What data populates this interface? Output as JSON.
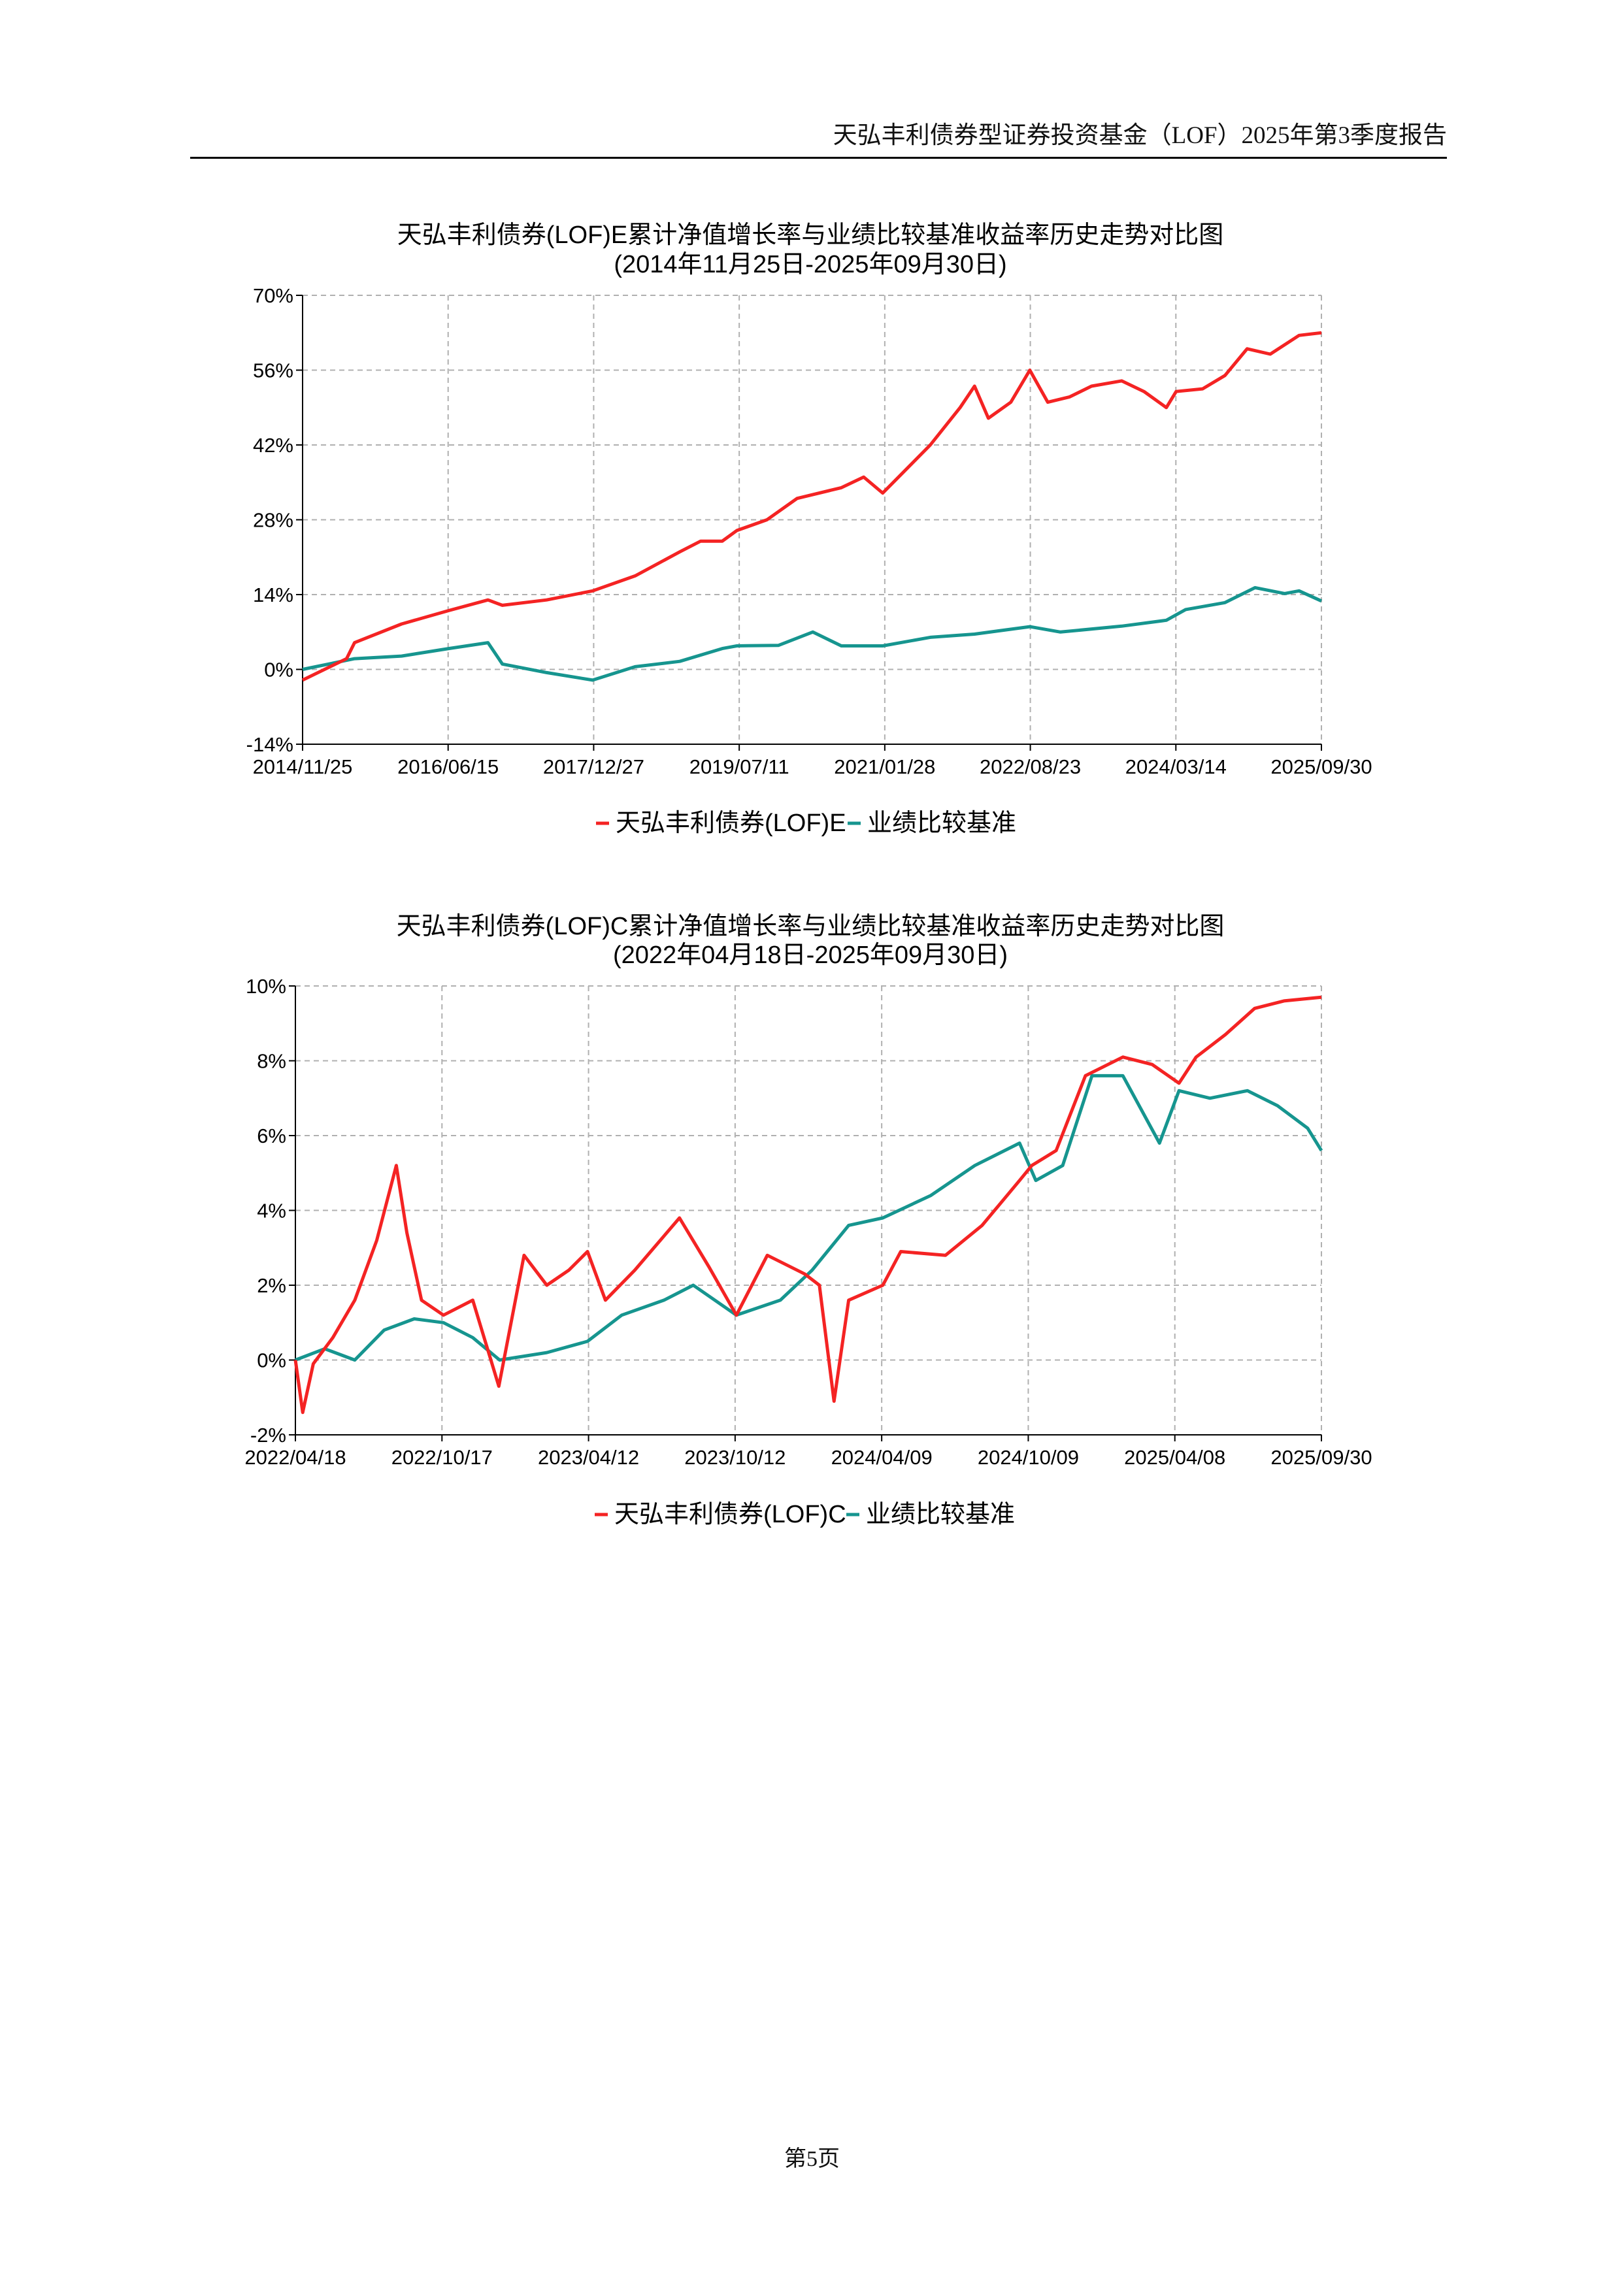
{
  "header": {
    "title": "天弘丰利债券型证券投资基金（LOF）2025年第3季度报告"
  },
  "footer": {
    "page": "第5页"
  },
  "colors": {
    "fund": "#f42323",
    "benchmark": "#16958f",
    "grid": "#b0b0b0"
  },
  "chart_data": [
    {
      "type": "line",
      "title": "天弘丰利债券(LOF)E累计净值增长率与业绩比较基准收益率历史走势对比图",
      "subtitle": "(2014年11月25日-2025年09月30日)",
      "ylim": [
        -14,
        70
      ],
      "yticks": [
        -14,
        0,
        14,
        28,
        42,
        56,
        70
      ],
      "ytick_labels": [
        "-14%",
        "0%",
        "14%",
        "28%",
        "42%",
        "56%",
        "70%"
      ],
      "xticks": [
        "2014/11/25",
        "2016/06/15",
        "2017/12/27",
        "2019/07/11",
        "2021/01/28",
        "2022/08/23",
        "2024/03/14",
        "2025/09/30"
      ],
      "grid": true,
      "legend_position": "bottom",
      "series": [
        {
          "name": "天弘丰利债券(LOF)E",
          "color": "#f42323",
          "points": [
            [
              "2014-11-25",
              -2
            ],
            [
              "2015-05-15",
              2
            ],
            [
              "2015-06-15",
              5
            ],
            [
              "2015-12-15",
              8.5
            ],
            [
              "2016-06-15",
              11
            ],
            [
              "2016-11-15",
              13
            ],
            [
              "2017-01-10",
              12
            ],
            [
              "2017-07-01",
              13
            ],
            [
              "2017-12-27",
              14.7
            ],
            [
              "2018-06-10",
              17.5
            ],
            [
              "2018-12-01",
              22
            ],
            [
              "2019-02-20",
              24
            ],
            [
              "2019-05-15",
              24
            ],
            [
              "2019-07-11",
              26
            ],
            [
              "2019-11-05",
              28
            ],
            [
              "2020-03-01",
              32
            ],
            [
              "2020-08-20",
              34
            ],
            [
              "2020-11-15",
              36
            ],
            [
              "2021-01-28",
              33
            ],
            [
              "2021-08-01",
              42
            ],
            [
              "2021-11-25",
              49
            ],
            [
              "2022-01-20",
              53
            ],
            [
              "2022-03-15",
              47
            ],
            [
              "2022-06-10",
              50
            ],
            [
              "2022-08-23",
              56
            ],
            [
              "2022-11-01",
              50
            ],
            [
              "2023-01-25",
              51
            ],
            [
              "2023-04-20",
              53
            ],
            [
              "2023-08-15",
              54
            ],
            [
              "2023-11-10",
              52
            ],
            [
              "2024-02-05",
              49
            ],
            [
              "2024-03-14",
              52
            ],
            [
              "2024-06-25",
              52.5
            ],
            [
              "2024-09-20",
              55
            ],
            [
              "2024-12-15",
              60
            ],
            [
              "2025-03-15",
              59
            ],
            [
              "2025-07-05",
              62.5
            ],
            [
              "2025-09-30",
              63
            ]
          ]
        },
        {
          "name": "业绩比较基准",
          "color": "#16958f",
          "points": [
            [
              "2014-11-25",
              0
            ],
            [
              "2015-06-15",
              2
            ],
            [
              "2015-12-15",
              2.5
            ],
            [
              "2016-06-15",
              3.9
            ],
            [
              "2016-11-15",
              5
            ],
            [
              "2017-01-10",
              1
            ],
            [
              "2017-07-01",
              -0.6
            ],
            [
              "2017-12-27",
              -2
            ],
            [
              "2018-06-10",
              0.5
            ],
            [
              "2018-12-01",
              1.5
            ],
            [
              "2019-05-15",
              3.9
            ],
            [
              "2019-07-11",
              4.4
            ],
            [
              "2019-12-20",
              4.5
            ],
            [
              "2020-05-01",
              7
            ],
            [
              "2020-08-20",
              4.4
            ],
            [
              "2021-01-28",
              4.4
            ],
            [
              "2021-08-01",
              6
            ],
            [
              "2022-01-20",
              6.6
            ],
            [
              "2022-08-23",
              8
            ],
            [
              "2022-12-20",
              7
            ],
            [
              "2023-08-15",
              8.1
            ],
            [
              "2024-02-05",
              9.2
            ],
            [
              "2024-04-20",
              11.2
            ],
            [
              "2024-09-20",
              12.5
            ],
            [
              "2025-01-15",
              15.3
            ],
            [
              "2025-05-10",
              14.2
            ],
            [
              "2025-07-05",
              14.7
            ],
            [
              "2025-09-30",
              12.8
            ]
          ]
        }
      ]
    },
    {
      "type": "line",
      "title": "天弘丰利债券(LOF)C累计净值增长率与业绩比较基准收益率历史走势对比图",
      "subtitle": "(2022年04月18日-2025年09月30日)",
      "ylim": [
        -2,
        10
      ],
      "yticks": [
        -2,
        0,
        2,
        4,
        6,
        8,
        10
      ],
      "ytick_labels": [
        "-2%",
        "0%",
        "2%",
        "4%",
        "6%",
        "8%",
        "10%"
      ],
      "xticks": [
        "2022/04/18",
        "2022/10/17",
        "2023/04/12",
        "2023/10/12",
        "2024/04/09",
        "2024/10/09",
        "2025/04/08",
        "2025/09/30"
      ],
      "grid": true,
      "legend_position": "bottom",
      "series": [
        {
          "name": "天弘丰利债券(LOF)C",
          "color": "#f42323",
          "points": [
            [
              "2022-04-18",
              0
            ],
            [
              "2022-04-27",
              -1.4
            ],
            [
              "2022-05-10",
              -0.1
            ],
            [
              "2022-06-03",
              0.6
            ],
            [
              "2022-06-30",
              1.6
            ],
            [
              "2022-07-27",
              3.2
            ],
            [
              "2022-08-20",
              5.2
            ],
            [
              "2022-09-02",
              3.4
            ],
            [
              "2022-09-20",
              1.6
            ],
            [
              "2022-10-17",
              1.2
            ],
            [
              "2022-11-22",
              1.6
            ],
            [
              "2022-12-24",
              -0.7
            ],
            [
              "2023-01-24",
              2.8
            ],
            [
              "2023-02-21",
              2
            ],
            [
              "2023-03-20",
              2.4
            ],
            [
              "2023-04-12",
              2.9
            ],
            [
              "2023-05-04",
              1.6
            ],
            [
              "2023-06-09",
              2.4
            ],
            [
              "2023-08-03",
              3.8
            ],
            [
              "2023-09-08",
              2.5
            ],
            [
              "2023-10-12",
              1.2
            ],
            [
              "2023-11-19",
              2.8
            ],
            [
              "2024-01-04",
              2.3
            ],
            [
              "2024-01-22",
              2
            ],
            [
              "2024-02-09",
              -1.1
            ],
            [
              "2024-02-27",
              1.6
            ],
            [
              "2024-04-09",
              2
            ],
            [
              "2024-05-01",
              2.9
            ],
            [
              "2024-06-25",
              2.8
            ],
            [
              "2024-08-09",
              3.6
            ],
            [
              "2024-09-24",
              4.8
            ],
            [
              "2024-10-09",
              5.2
            ],
            [
              "2024-11-08",
              5.6
            ],
            [
              "2024-12-14",
              7.6
            ],
            [
              "2025-01-29",
              8.1
            ],
            [
              "2025-03-06",
              7.9
            ],
            [
              "2025-04-08",
              7.4
            ],
            [
              "2025-04-29",
              8.1
            ],
            [
              "2025-06-04",
              8.7
            ],
            [
              "2025-07-10",
              9.4
            ],
            [
              "2025-08-15",
              9.6
            ],
            [
              "2025-09-30",
              9.7
            ]
          ]
        },
        {
          "name": "业绩比较基准",
          "color": "#16958f",
          "points": [
            [
              "2022-04-18",
              0
            ],
            [
              "2022-05-24",
              0.3
            ],
            [
              "2022-06-30",
              0
            ],
            [
              "2022-08-05",
              0.8
            ],
            [
              "2022-09-11",
              1.1
            ],
            [
              "2022-10-17",
              1
            ],
            [
              "2022-11-22",
              0.6
            ],
            [
              "2022-12-25",
              0
            ],
            [
              "2023-02-21",
              0.2
            ],
            [
              "2023-04-12",
              0.5
            ],
            [
              "2023-05-24",
              1.2
            ],
            [
              "2023-07-15",
              1.6
            ],
            [
              "2023-08-20",
              2
            ],
            [
              "2023-10-12",
              1.2
            ],
            [
              "2023-12-05",
              1.6
            ],
            [
              "2024-01-13",
              2.4
            ],
            [
              "2024-02-27",
              3.6
            ],
            [
              "2024-04-09",
              3.8
            ],
            [
              "2024-06-07",
              4.4
            ],
            [
              "2024-07-31",
              5.2
            ],
            [
              "2024-09-24",
              5.8
            ],
            [
              "2024-10-14",
              4.8
            ],
            [
              "2024-11-16",
              5.2
            ],
            [
              "2024-12-22",
              7.6
            ],
            [
              "2025-01-29",
              7.6
            ],
            [
              "2025-03-15",
              5.8
            ],
            [
              "2025-04-08",
              7.2
            ],
            [
              "2025-05-16",
              7
            ],
            [
              "2025-07-01",
              7.2
            ],
            [
              "2025-08-07",
              6.8
            ],
            [
              "2025-09-13",
              6.2
            ],
            [
              "2025-09-30",
              5.6
            ]
          ]
        }
      ]
    }
  ]
}
